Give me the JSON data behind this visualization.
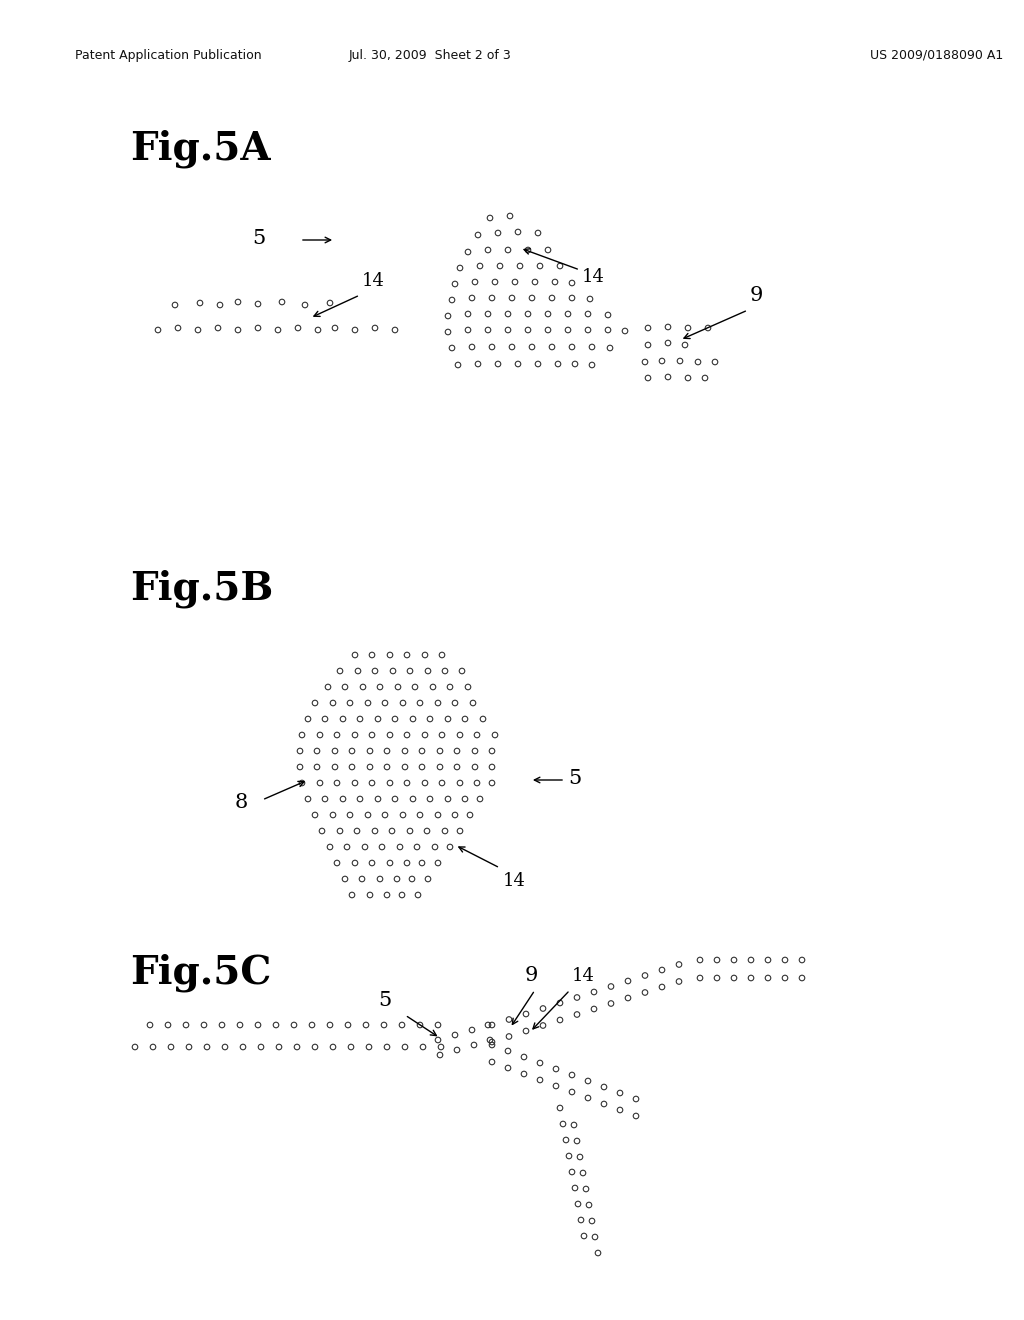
{
  "background_color": "#ffffff",
  "header_left": "Patent Application Publication",
  "header_center": "Jul. 30, 2009  Sheet 2 of 3",
  "header_right": "US 2009/0188090 A1",
  "header_fontsize": 9,
  "fig_label_fontsize": 28,
  "annotation_fontsize": 13,
  "circle_size": 16,
  "circle_lw": 0.8,
  "circle_color": "none",
  "circle_edge_color": "#333333"
}
